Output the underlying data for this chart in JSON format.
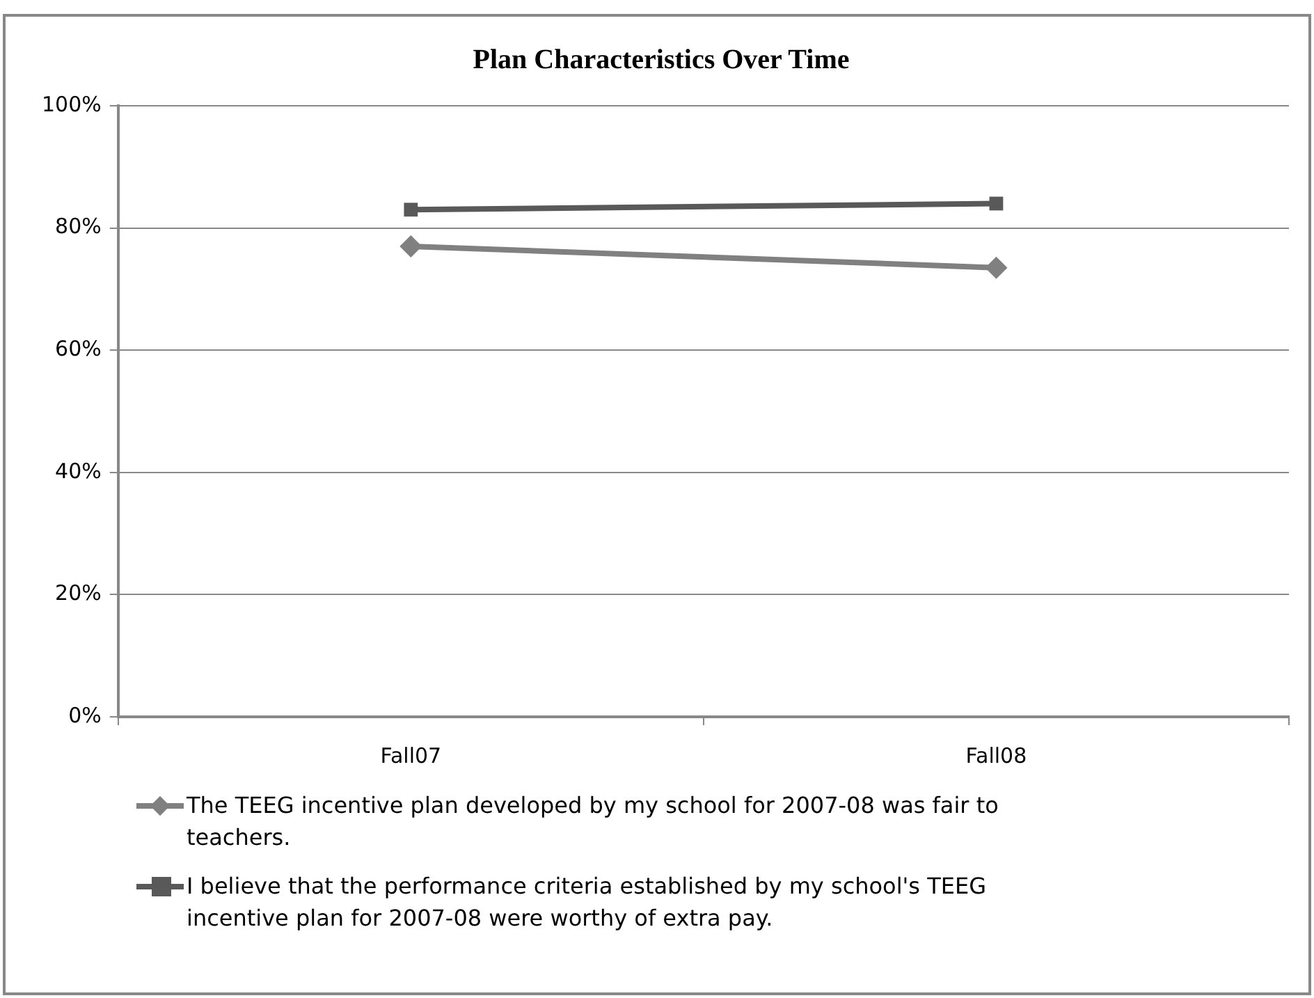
{
  "chart_data": {
    "type": "line",
    "title": "Plan Characteristics Over Time",
    "categories": [
      "Fall07",
      "Fall08"
    ],
    "series": [
      {
        "name": "The TEEG  incentive plan developed by my school for 2007-08 was fair to teachers.",
        "color": "#808080",
        "values": [
          77,
          73.5
        ],
        "marker": "diamond"
      },
      {
        "name": "I believe that the performance criteria established by my school's TEEG incentive plan for 2007-08 were worthy of extra pay.",
        "color": "#595959",
        "values": [
          83,
          84
        ],
        "marker": "square"
      }
    ],
    "ylim": [
      0,
      100
    ],
    "yticks": [
      {
        "value": 0,
        "label": "0%"
      },
      {
        "value": 20,
        "label": "20%"
      },
      {
        "value": 40,
        "label": "40%"
      },
      {
        "value": 60,
        "label": "60%"
      },
      {
        "value": 80,
        "label": "80%"
      },
      {
        "value": 100,
        "label": "100%"
      }
    ],
    "grid": "y",
    "legend": "bottom",
    "line_style": "solid"
  }
}
